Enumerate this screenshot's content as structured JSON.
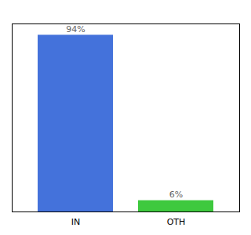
{
  "chart_data": {
    "type": "bar",
    "categories": [
      "IN",
      "OTH"
    ],
    "values": [
      94,
      6
    ],
    "value_labels": [
      "94%",
      "6%"
    ],
    "colors": [
      "#4472db",
      "#3ec93e"
    ],
    "ylim": [
      0,
      100
    ],
    "data_labels": true,
    "tick_labels": "x"
  }
}
